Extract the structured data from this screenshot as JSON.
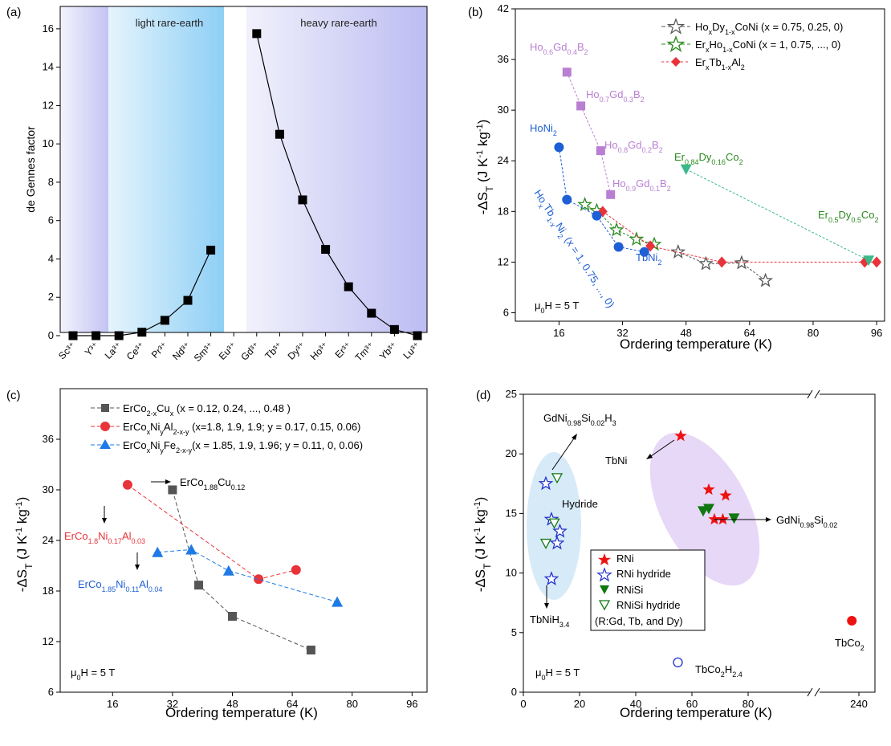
{
  "chart_data": [
    {
      "panel": "(a)",
      "type": "line",
      "ylabel": "de Gennes factor",
      "xlabel": "",
      "ylim": [
        0,
        17
      ],
      "yticks": [
        0,
        2,
        4,
        6,
        8,
        10,
        12,
        14,
        16
      ],
      "categories": [
        "Sc³⁺",
        "Y³⁺",
        "La³⁺",
        "Ce³⁺",
        "Pr³⁺",
        "Nd³⁺",
        "Sm³⁺",
        "Eu³⁺",
        "Gd³⁺",
        "Tb³⁺",
        "Dy³⁺",
        "Ho³⁺",
        "Er³⁺",
        "Tm³⁺",
        "Yb³⁺",
        "Lu³⁺"
      ],
      "regions": [
        {
          "label": "light rare-earth",
          "from": "La³⁺",
          "to": "Sm³⁺"
        },
        {
          "label": "heavy rare-earth",
          "from": "Gd³⁺",
          "to": "Lu³⁺"
        }
      ],
      "series": [
        {
          "color": "#000000",
          "values": [
            0,
            0,
            0,
            0.18,
            0.8,
            1.84,
            4.46,
            null,
            15.75,
            10.5,
            7.08,
            4.5,
            2.55,
            1.17,
            0.32,
            0
          ]
        }
      ]
    },
    {
      "panel": "(b)",
      "type": "scatter",
      "xlabel": "Ordering temperature (K)",
      "ylabel_parts": {
        "main": "-ΔS",
        "sub": "T",
        "unit_a": " (J K",
        "sup_a": "-1",
        "unit_b": " kg",
        "sup_b": "-1",
        "close": ")"
      },
      "xlim": [
        5,
        98
      ],
      "ylim": [
        5,
        42
      ],
      "xticks": [
        16,
        32,
        48,
        64,
        80,
        96
      ],
      "yticks": [
        6,
        12,
        18,
        24,
        30,
        36,
        42
      ],
      "field_label": "μ0H = 5 T",
      "legend": [
        "HoxDy1-xCoNi (x = 0.75, 0.25, 0)",
        "ErxHo1-xCoNi (x = 1, 0.75, ..., 0)",
        "ErxTb1-xAl2"
      ],
      "annotations": [
        "Ho0.6Gd0.4B2",
        "Ho0.7Gd0.3B2",
        "Ho0.8Gd0.2B2",
        "Ho0.9Gd0.1B2",
        "HoNi2",
        "TbNi2",
        "HoxTb1-xNi2 (x = 1, 0.75, ..., 0)",
        "Er0.84Dy0.16Co2",
        "Er0.5Dy0.5Co2"
      ],
      "series": [
        {
          "name": "HoxDy1-xCoNi (x = 0.75, 0.25, 0)",
          "marker": "star-open",
          "color": "#555555",
          "x": [
            46,
            53,
            62,
            68
          ],
          "y": [
            13.2,
            11.8,
            11.9,
            9.8
          ]
        },
        {
          "name": "ErxHo1-xCoNi (x = 1, 0.75, ..., 0)",
          "marker": "star-open",
          "color": "#2a8a1e",
          "x": [
            22.5,
            25.5,
            30.5,
            35.5,
            40
          ],
          "y": [
            18.8,
            18.1,
            15.8,
            14.7,
            14.1
          ]
        },
        {
          "name": "ErxTb1-xAl2",
          "marker": "diamond",
          "color": "#e8333a",
          "x": [
            27,
            39,
            57,
            93,
            96
          ],
          "y": [
            18,
            13.9,
            12,
            12,
            12
          ]
        },
        {
          "marker": "square",
          "color": "#b97fd3",
          "x": [
            18,
            21.5,
            26.5,
            29
          ],
          "y": [
            34.5,
            30.5,
            25.2,
            20
          ]
        },
        {
          "marker": "circle",
          "color": "#1e5fd6",
          "x": [
            16,
            18,
            25.5,
            31,
            37.5
          ],
          "y": [
            25.6,
            19.4,
            17.5,
            13.8,
            13.2
          ]
        },
        {
          "marker": "triangle-down",
          "color": "#3ab98a",
          "x": [
            48,
            94
          ],
          "y": [
            23,
            12.2
          ]
        }
      ]
    },
    {
      "panel": "(c)",
      "type": "line",
      "xlabel": "Ordering temperature (K)",
      "xlim": [
        2,
        100
      ],
      "ylim": [
        6,
        42
      ],
      "xticks": [
        16,
        32,
        48,
        64,
        80,
        96
      ],
      "yticks": [
        6,
        12,
        18,
        24,
        30,
        36
      ],
      "field_label": "μ0H = 5 T",
      "legend": [
        "ErCo2-xCux (x = 0.12, 0.24, ..., 0.48 )",
        "ErCoxNiyAl2-x-y (x=1.8, 1.9, 1.9; y = 0.17, 0.15, 0.06)",
        "ErCoxNiyFe2-x-y(x = 1.85, 1.9, 1.96; y = 0.11, 0, 0.06)"
      ],
      "annotations": [
        "ErCo1.88Cu0.12",
        "ErCo1.8Ni0.17Al0.03",
        "ErCo1.85Ni0.11Al0.04"
      ],
      "series": [
        {
          "name": "ErCo2-xCux (x = 0.12, 0.24, ..., 0.48 )",
          "marker": "square",
          "color": "#555555",
          "x": [
            32,
            39,
            48,
            69
          ],
          "y": [
            30,
            18.7,
            15,
            11
          ]
        },
        {
          "name": "ErCoxNiyAl2-x-y (x=1.8, 1.9, 1.9; y = 0.17, 0.15, 0.06)",
          "marker": "circle",
          "color": "#e8333a",
          "x": [
            20,
            55,
            65
          ],
          "y": [
            30.6,
            19.4,
            20.5
          ]
        },
        {
          "name": "ErCoxNiyFe2-x-y(x = 1.85, 1.9, 1.96; y = 0.11, 0, 0.06)",
          "marker": "triangle",
          "color": "#1e7ae6",
          "x": [
            28,
            37,
            47,
            76
          ],
          "y": [
            22.6,
            22.9,
            20.4,
            16.7
          ]
        }
      ]
    },
    {
      "panel": "(d)",
      "type": "scatter",
      "xlabel": "Ordering temperature (K)",
      "ylim": [
        0,
        25
      ],
      "xtick_labels": [
        "0",
        "20",
        "40",
        "60",
        "80",
        "240"
      ],
      "yticks": [
        0,
        5,
        10,
        15,
        20,
        25
      ],
      "field_label": "μ0H = 5 T",
      "legend": [
        "RNi",
        "RNi hydride",
        "RNiSi",
        "RNiSi hydride",
        "(R:Gd, Tb, and Dy)"
      ],
      "region_labels": [
        "Hydride"
      ],
      "annotations": [
        "GdNi0.98Si0.02H3",
        "TbNi",
        "GdNi0.98Si0.02",
        "TbNiH3.4",
        "TbCo2",
        "TbCo2H2.4"
      ],
      "series": [
        {
          "name": "RNi",
          "marker": "star",
          "color": "#ee1111",
          "x": [
            56,
            66,
            72,
            68,
            71
          ],
          "y": [
            21.5,
            17,
            16.5,
            14.5,
            14.5
          ]
        },
        {
          "name": "RNi hydride",
          "marker": "star-open",
          "color": "#2233cc",
          "x": [
            8,
            10,
            13,
            12,
            10
          ],
          "y": [
            17.5,
            14.5,
            13.5,
            12.5,
            9.5
          ]
        },
        {
          "name": "RNiSi",
          "marker": "triangle-down",
          "color": "#117711",
          "x": [
            64,
            66,
            75
          ],
          "y": [
            15.2,
            15.4,
            14.6
          ]
        },
        {
          "name": "RNiSi hydride",
          "marker": "triangle-down-open",
          "color": "#117711",
          "x": [
            12,
            11,
            8
          ],
          "y": [
            18,
            14.2,
            12.5
          ]
        },
        {
          "marker": "circle",
          "color": "#ee1111",
          "x": [
            232
          ],
          "y": [
            6
          ]
        },
        {
          "marker": "circle-open",
          "color": "#2233cc",
          "x": [
            55
          ],
          "y": [
            2.5
          ]
        }
      ]
    }
  ]
}
